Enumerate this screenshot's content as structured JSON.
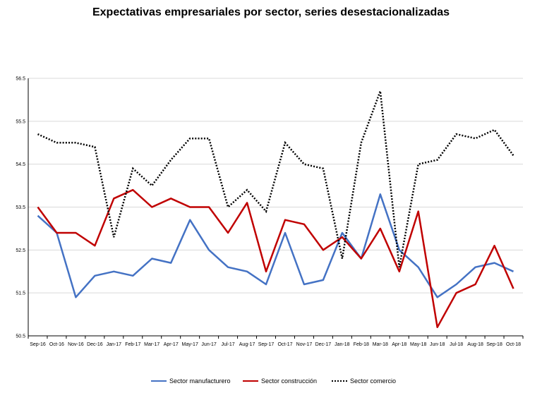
{
  "chart_data": {
    "type": "line",
    "title": "Expectativas empresariales por sector, series desestacionalizadas",
    "xlabel": "",
    "ylabel": "",
    "ylim": [
      50.5,
      56.5
    ],
    "yticks": [
      "50.5",
      "51.5",
      "52.5",
      "53.5",
      "54.5",
      "55.5",
      "56.5"
    ],
    "categories": [
      "Sep-16",
      "Oct-16",
      "Nov-16",
      "Dec-16",
      "Jan-17",
      "Feb-17",
      "Mar-17",
      "Apr-17",
      "May-17",
      "Jun-17",
      "Jul-17",
      "Aug-17",
      "Sep-17",
      "Oct-17",
      "Nov-17",
      "Dec-17",
      "Jan-18",
      "Feb-18",
      "Mar-18",
      "Apr-18",
      "May-18",
      "Jun-18",
      "Jul-18",
      "Aug-18",
      "Sep-18",
      "Oct-18"
    ],
    "grid": "horizontal",
    "legend_position": "bottom",
    "series": [
      {
        "name": "Sector manufacturero",
        "color": "#4472C4",
        "style": "solid",
        "values": [
          53.3,
          52.9,
          51.4,
          51.9,
          52.0,
          51.9,
          52.3,
          52.2,
          53.2,
          52.5,
          52.1,
          52.0,
          51.7,
          52.9,
          51.7,
          51.8,
          52.9,
          52.3,
          53.8,
          52.5,
          52.1,
          51.4,
          51.7,
          52.1,
          52.2,
          52.0
        ]
      },
      {
        "name": "Sector construcción",
        "color": "#C00000",
        "style": "solid",
        "values": [
          53.5,
          52.9,
          52.9,
          52.6,
          53.7,
          53.9,
          53.5,
          53.7,
          53.5,
          53.5,
          52.9,
          53.6,
          52.0,
          53.2,
          53.1,
          52.5,
          52.8,
          52.3,
          53.0,
          52.0,
          53.4,
          50.7,
          51.5,
          51.7,
          52.6,
          51.6
        ]
      },
      {
        "name": "Sector comercio",
        "color": "#000000",
        "style": "dotted",
        "values": [
          55.2,
          55.0,
          55.0,
          54.9,
          52.8,
          54.4,
          54.0,
          54.6,
          55.1,
          55.1,
          53.5,
          53.9,
          53.4,
          55.0,
          54.5,
          54.4,
          52.3,
          55.0,
          56.2,
          52.1,
          54.5,
          54.6,
          55.2,
          55.1,
          55.3,
          54.7
        ]
      }
    ]
  }
}
